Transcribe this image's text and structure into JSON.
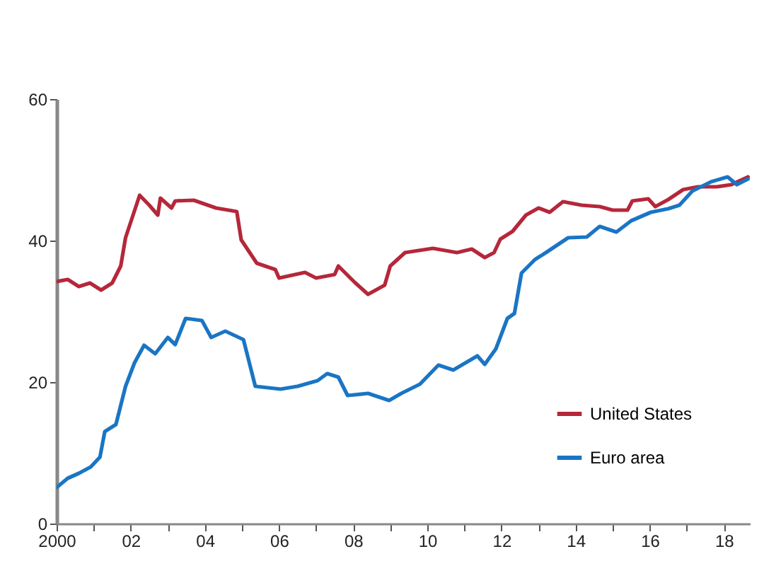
{
  "chart_data": {
    "type": "line",
    "xlim": [
      2000,
      2018.7
    ],
    "ylim": [
      0,
      60
    ],
    "yticks": [
      0,
      20,
      40,
      60
    ],
    "xticks": [
      {
        "value": 2000,
        "label": "2000"
      },
      {
        "value": 2001,
        "label": null
      },
      {
        "value": 2002,
        "label": "02"
      },
      {
        "value": 2003,
        "label": null
      },
      {
        "value": 2004,
        "label": "04"
      },
      {
        "value": 2005,
        "label": null
      },
      {
        "value": 2006,
        "label": "06"
      },
      {
        "value": 2007,
        "label": null
      },
      {
        "value": 2008,
        "label": "08"
      },
      {
        "value": 2009,
        "label": null
      },
      {
        "value": 2010,
        "label": "10"
      },
      {
        "value": 2011,
        "label": null
      },
      {
        "value": 2012,
        "label": "12"
      },
      {
        "value": 2013,
        "label": null
      },
      {
        "value": 2014,
        "label": "14"
      },
      {
        "value": 2015,
        "label": null
      },
      {
        "value": 2016,
        "label": "16"
      },
      {
        "value": 2017,
        "label": null
      },
      {
        "value": 2018,
        "label": "18"
      }
    ],
    "grid": false,
    "legend": "bottom right",
    "line_style": "solid",
    "marker": "none",
    "series": [
      {
        "name": "United States",
        "color": "#b5273a",
        "x": [
          2000,
          2000.3,
          2000.6,
          2000.9,
          2001.2,
          2001.5,
          2001.73,
          2001.86,
          2002.24,
          2002.5,
          2002.73,
          2002.8,
          2003.1,
          2003.2,
          2003.7,
          2004.3,
          2004.86,
          2004.98,
          2005.4,
          2005.9,
          2006,
          2006.7,
          2007,
          2007.5,
          2007.6,
          2008.04,
          2008.4,
          2008.54,
          2008.85,
          2009,
          2009.4,
          2010.15,
          2010.8,
          2011.2,
          2011.55,
          2011.8,
          2011.97,
          2012.3,
          2012.66,
          2013,
          2013.3,
          2013.66,
          2014.16,
          2014.65,
          2015,
          2015.4,
          2015.53,
          2015.96,
          2016.15,
          2016.5,
          2016.9,
          2017.3,
          2017.8,
          2018.2,
          2018.65
        ],
        "values": [
          34.2,
          34.5,
          33.5,
          34,
          33,
          34,
          36.4,
          40.4,
          46.4,
          45,
          43.6,
          46,
          44.6,
          45.6,
          45.7,
          44.6,
          44.1,
          40.1,
          36.8,
          35.9,
          34.7,
          35.5,
          34.7,
          35.2,
          36.4,
          34.1,
          32.4,
          32.8,
          33.7,
          36.4,
          38.3,
          38.9,
          38.3,
          38.8,
          37.6,
          38.3,
          40.2,
          41.3,
          43.6,
          44.6,
          44,
          45.5,
          45,
          44.8,
          44.3,
          44.3,
          45.6,
          45.9,
          44.8,
          45.8,
          47.2,
          47.6,
          47.6,
          47.9,
          49
        ]
      },
      {
        "name": "Euro area",
        "color": "#1a75c4",
        "x": [
          2000,
          2000.3,
          2000.6,
          2000.92,
          2001.17,
          2001.3,
          2001.6,
          2001.86,
          2002.1,
          2002.36,
          2002.66,
          2003,
          2003.2,
          2003.48,
          2003.92,
          2004.17,
          2004.55,
          2005.04,
          2005.36,
          2006.04,
          2006.5,
          2007.04,
          2007.3,
          2007.6,
          2007.85,
          2008.4,
          2008.97,
          2009.3,
          2009.8,
          2010.3,
          2010.7,
          2011.35,
          2011.55,
          2011.85,
          2012.16,
          2012.35,
          2012.54,
          2012.9,
          2013.2,
          2013.8,
          2014.3,
          2014.65,
          2015.1,
          2015.5,
          2016.03,
          2016.5,
          2016.8,
          2017.15,
          2017.65,
          2018.1,
          2018.35,
          2018.65
        ],
        "values": [
          5.1,
          6.4,
          7.1,
          8,
          9.4,
          13,
          14,
          19.4,
          22.7,
          25.2,
          24,
          26.3,
          25.3,
          29,
          28.7,
          26.3,
          27.2,
          26,
          19.4,
          19,
          19.4,
          20.2,
          21.2,
          20.7,
          18.1,
          18.4,
          17.4,
          18.4,
          19.7,
          22.4,
          21.7,
          23.7,
          22.5,
          24.7,
          29,
          29.7,
          35.4,
          37.3,
          38.3,
          40.4,
          40.5,
          42,
          41.2,
          42.8,
          44,
          44.5,
          45,
          47,
          48.3,
          49,
          47.9,
          48.7
        ]
      }
    ]
  }
}
